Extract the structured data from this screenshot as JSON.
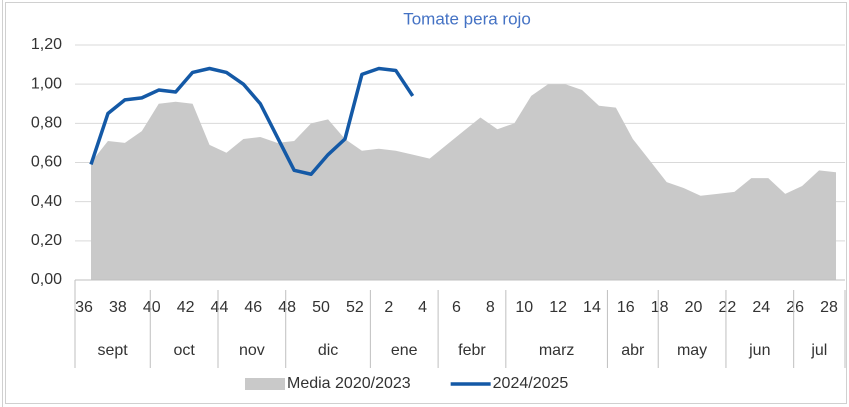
{
  "chart_data": {
    "type": "area_line",
    "title": "Tomate pera rojo",
    "categories": [
      36,
      null,
      38,
      null,
      40,
      null,
      42,
      null,
      44,
      null,
      46,
      null,
      48,
      null,
      50,
      null,
      52,
      null,
      2,
      null,
      4,
      null,
      6,
      null,
      8,
      null,
      10,
      null,
      12,
      null,
      14,
      null,
      16,
      null,
      18,
      null,
      20,
      null,
      22,
      null,
      24,
      null,
      26,
      null,
      28
    ],
    "x_groups": [
      {
        "label": "sept",
        "count": 4
      },
      {
        "label": "oct",
        "count": 4
      },
      {
        "label": "nov",
        "count": 4
      },
      {
        "label": "dic",
        "count": 5
      },
      {
        "label": "ene",
        "count": 4
      },
      {
        "label": "febr",
        "count": 4
      },
      {
        "label": "marz",
        "count": 6
      },
      {
        "label": "abr",
        "count": 3
      },
      {
        "label": "may",
        "count": 4
      },
      {
        "label": "jun",
        "count": 4
      },
      {
        "label": "jul",
        "count": 3
      }
    ],
    "series": [
      {
        "name": "Media 2020/2023",
        "kind": "area",
        "color": "#c9c9c9",
        "values": [
          0.6,
          0.71,
          0.7,
          0.76,
          0.9,
          0.91,
          0.9,
          0.69,
          0.65,
          0.72,
          0.73,
          0.7,
          0.71,
          0.8,
          0.82,
          0.72,
          0.66,
          0.67,
          0.66,
          0.64,
          0.62,
          0.69,
          0.76,
          0.83,
          0.77,
          0.8,
          0.94,
          1.0,
          1.0,
          0.97,
          0.89,
          0.88,
          0.72,
          0.61,
          0.5,
          0.47,
          0.43,
          0.44,
          0.45,
          0.52,
          0.52,
          0.44,
          0.48,
          0.56,
          0.55
        ]
      },
      {
        "name": "2024/2025",
        "kind": "line",
        "color": "#1459a6",
        "values": [
          0.59,
          0.85,
          0.92,
          0.93,
          0.97,
          0.96,
          1.06,
          1.08,
          1.06,
          1.0,
          0.9,
          0.73,
          0.56,
          0.54,
          0.64,
          0.72,
          1.05,
          1.08,
          1.07,
          0.94,
          null,
          null,
          null,
          null,
          null,
          null,
          null,
          null,
          null,
          null,
          null,
          null,
          null,
          null,
          null,
          null,
          null,
          null,
          null,
          null,
          null,
          null,
          null,
          null,
          null
        ]
      }
    ],
    "ylim": [
      0,
      1.2
    ],
    "yticks": [
      {
        "value": 0,
        "label": "0,00"
      },
      {
        "value": 0.2,
        "label": "0,20"
      },
      {
        "value": 0.4,
        "label": "0,40"
      },
      {
        "value": 0.6,
        "label": "0,60"
      },
      {
        "value": 0.8,
        "label": "0,80"
      },
      {
        "value": 1.0,
        "label": "1,00"
      },
      {
        "value": 1.2,
        "label": "1,20"
      }
    ],
    "grid": true,
    "legend": "bottom",
    "title_color": "#4472c4"
  }
}
